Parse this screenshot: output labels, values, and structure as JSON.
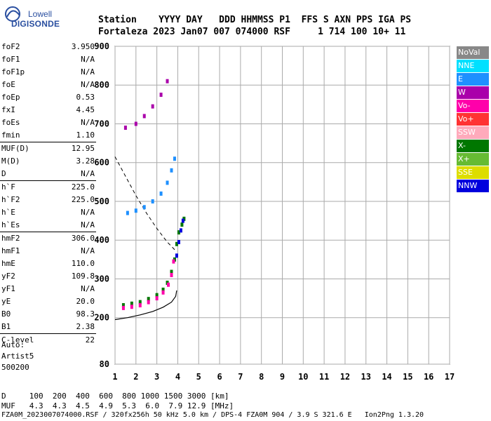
{
  "logo": {
    "line1": "Lowell",
    "line2": "DIGISONDE"
  },
  "header": {
    "labels": "Station    YYYY DAY   DDD HHMMSS P1  FFS S AXN PPS IGA PS",
    "values": "Fortaleza 2023 Jan07 007 074000 RSF     1 714 100 10+ 11"
  },
  "params": [
    {
      "label": "foF2",
      "value": "3.950"
    },
    {
      "label": "foF1",
      "value": "N/A"
    },
    {
      "label": "foF1p",
      "value": "N/A"
    },
    {
      "label": "foE",
      "value": "N/A"
    },
    {
      "label": "foEp",
      "value": "0.53"
    },
    {
      "label": "fxI",
      "value": "4.45"
    },
    {
      "label": "foEs",
      "value": "N/A"
    },
    {
      "label": "fmin",
      "value": "1.10"
    },
    {
      "label": "MUF(D)",
      "value": "12.95"
    },
    {
      "label": "M(D)",
      "value": "3.28"
    },
    {
      "label": "D",
      "value": "N/A"
    },
    {
      "label": "h`F",
      "value": "225.0"
    },
    {
      "label": "h`F2",
      "value": "225.0"
    },
    {
      "label": "h`E",
      "value": "N/A"
    },
    {
      "label": "h`Es",
      "value": "N/A"
    },
    {
      "label": "hmF2",
      "value": "306.0"
    },
    {
      "label": "hmF1",
      "value": "N/A"
    },
    {
      "label": "hmE",
      "value": "110.0"
    },
    {
      "label": "yF2",
      "value": "109.8"
    },
    {
      "label": "yF1",
      "value": "N/A"
    },
    {
      "label": "yE",
      "value": "20.0"
    },
    {
      "label": "B0",
      "value": "98.3"
    },
    {
      "label": "B1",
      "value": "2.38"
    },
    {
      "label": "C-level",
      "value": "22"
    }
  ],
  "auto": {
    "line1": "Auto:",
    "line2": "Artist5",
    "line3": "500200"
  },
  "legend": [
    {
      "label": "NoVal",
      "color": "#888888"
    },
    {
      "label": "NNE",
      "color": "#00e0ff"
    },
    {
      "label": "E",
      "color": "#1e90ff"
    },
    {
      "label": "W",
      "color": "#aa00aa"
    },
    {
      "label": "Vo-",
      "color": "#ff00aa"
    },
    {
      "label": "Vo+",
      "color": "#ff3333"
    },
    {
      "label": "SSW",
      "color": "#ffaabb"
    },
    {
      "label": "X-",
      "color": "#007700"
    },
    {
      "label": "X+",
      "color": "#66bb33"
    },
    {
      "label": "SSE",
      "color": "#dddd00"
    },
    {
      "label": "NNW",
      "color": "#0000dd"
    }
  ],
  "chart_data": {
    "type": "scatter",
    "xlim": [
      1,
      17
    ],
    "ylim": [
      80,
      900
    ],
    "xticks": [
      1,
      2,
      3,
      4,
      5,
      6,
      7,
      8,
      9,
      10,
      11,
      12,
      13,
      14,
      15,
      16,
      17
    ],
    "yticks": [
      80,
      200,
      300,
      400,
      500,
      600,
      700,
      800,
      900
    ],
    "grid": true,
    "series": [
      {
        "name": "X-",
        "color": "#007700",
        "points": [
          [
            1.4,
            232
          ],
          [
            1.8,
            236
          ],
          [
            2.2,
            240
          ],
          [
            2.6,
            248
          ],
          [
            3.0,
            258
          ],
          [
            3.3,
            272
          ],
          [
            3.5,
            290
          ],
          [
            3.7,
            318
          ],
          [
            3.85,
            350
          ],
          [
            3.95,
            390
          ],
          [
            4.05,
            420
          ],
          [
            4.2,
            440
          ],
          [
            4.3,
            455
          ]
        ]
      },
      {
        "name": "Vo-",
        "color": "#ff00aa",
        "points": [
          [
            1.4,
            225
          ],
          [
            1.8,
            228
          ],
          [
            2.2,
            232
          ],
          [
            2.6,
            240
          ],
          [
            3.0,
            250
          ],
          [
            3.3,
            265
          ],
          [
            3.55,
            285
          ],
          [
            3.7,
            310
          ],
          [
            3.8,
            345
          ]
        ]
      },
      {
        "name": "NNW",
        "color": "#0000dd",
        "points": [
          [
            3.95,
            360
          ],
          [
            4.05,
            395
          ],
          [
            4.15,
            425
          ],
          [
            4.25,
            450
          ]
        ]
      },
      {
        "name": "E",
        "color": "#1e90ff",
        "points": [
          [
            1.6,
            470
          ],
          [
            2.0,
            476
          ],
          [
            2.4,
            485
          ],
          [
            2.8,
            500
          ],
          [
            3.2,
            520
          ],
          [
            3.5,
            548
          ],
          [
            3.7,
            580
          ],
          [
            3.85,
            610
          ]
        ]
      },
      {
        "name": "W",
        "color": "#aa00aa",
        "points": [
          [
            1.5,
            690
          ],
          [
            2.0,
            700
          ],
          [
            2.4,
            720
          ],
          [
            2.8,
            745
          ],
          [
            3.2,
            775
          ],
          [
            3.5,
            810
          ]
        ]
      }
    ],
    "fit_line": [
      [
        1,
        195
      ],
      [
        1.6,
        200
      ],
      [
        2.2,
        207
      ],
      [
        2.8,
        216
      ],
      [
        3.3,
        227
      ],
      [
        3.7,
        240
      ],
      [
        3.9,
        255
      ],
      [
        3.95,
        270
      ]
    ],
    "fit_dashed": [
      [
        1,
        615
      ],
      [
        1.5,
        565
      ],
      [
        2.0,
        515
      ],
      [
        2.5,
        470
      ],
      [
        3.0,
        430
      ],
      [
        3.5,
        395
      ],
      [
        3.95,
        370
      ]
    ]
  },
  "footer": {
    "d_row": "D     100  200  400  600  800 1000 1500 3000 [km]",
    "muf_row": "MUF   4.3  4.3  4.5  4.9  5.3  6.0  7.9 12.9 [MHz]"
  },
  "fileline": "FZA0M_2023007074000.RSF / 320fx256h 50 kHz 5.0 km / DPS-4 FZA0M 904 / 3.9 S 321.6 E   Ion2Png 1.3.20"
}
